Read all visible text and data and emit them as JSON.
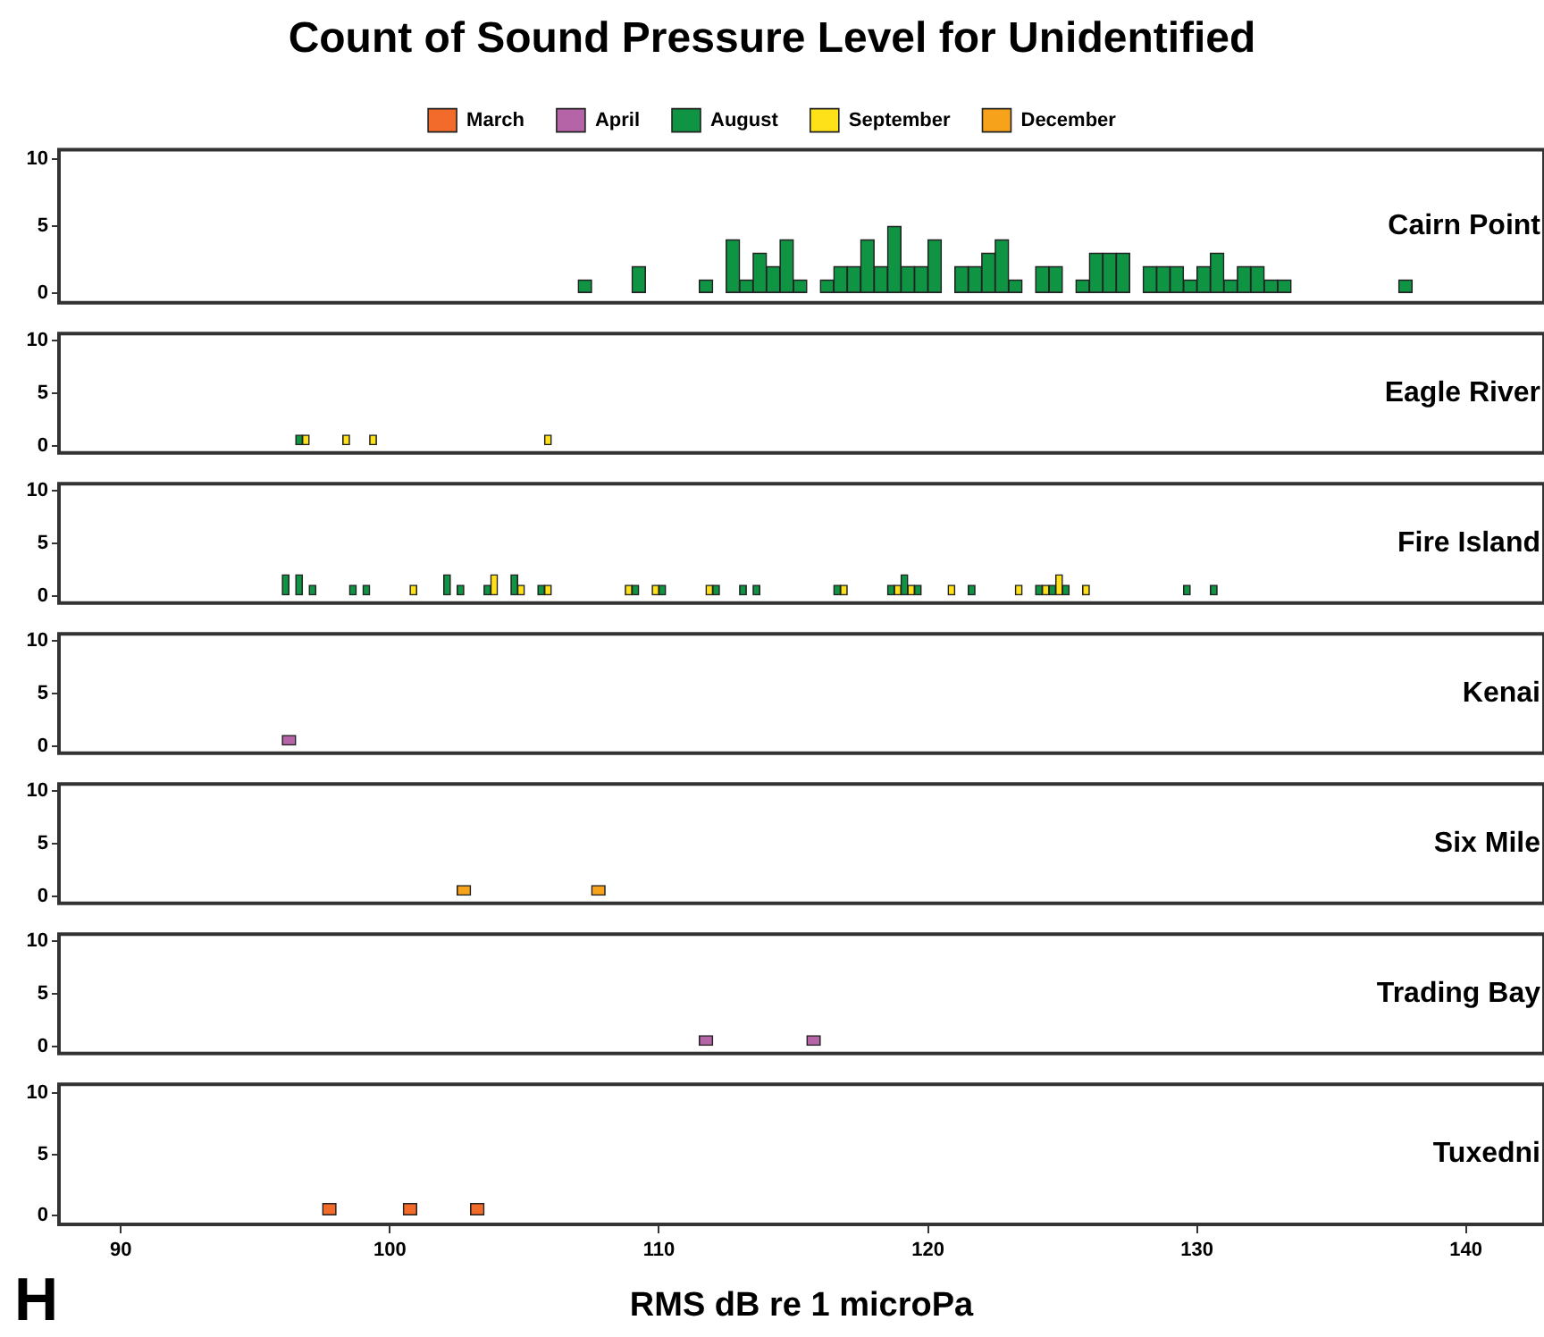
{
  "chart_data": [
    {
      "type": "bar",
      "title": "Count of Sound Pressure Level for Unidentified",
      "legend": "top",
      "tick_labels": "y",
      "xlim": [
        87.7,
        142.9
      ],
      "xticks": [
        90,
        100,
        110,
        120,
        130,
        140
      ],
      "ylim": [
        -0.7,
        10.7
      ],
      "yticks": [
        0,
        5,
        10
      ],
      "annotations": [
        "Cairn Point"
      ],
      "series": [
        {
          "name": "March",
          "color": "#f26b2a"
        },
        {
          "name": "April",
          "color": "#b565a7"
        },
        {
          "name": "August",
          "color": "#0f9444",
          "x": [
            107.25,
            109.25,
            111.75,
            112.75,
            113.25,
            113.75,
            114.25,
            114.75,
            115.25,
            116.25,
            116.75,
            117.25,
            117.75,
            118.25,
            118.75,
            119.25,
            119.75,
            120.25,
            121.25,
            121.75,
            122.25,
            122.75,
            123.25,
            124.25,
            124.75,
            125.75,
            126.25,
            126.75,
            127.25,
            128.25,
            128.75,
            129.25,
            129.75,
            130.25,
            130.75,
            131.25,
            131.75,
            132.25,
            132.75,
            133.25,
            137.75
          ],
          "values": [
            1,
            2,
            1,
            4,
            1,
            3,
            2,
            4,
            1,
            1,
            2,
            2,
            4,
            2,
            5,
            2,
            2,
            4,
            2,
            2,
            3,
            4,
            1,
            2,
            2,
            1,
            3,
            3,
            3,
            2,
            2,
            2,
            1,
            2,
            3,
            1,
            2,
            2,
            1,
            1,
            1
          ]
        },
        {
          "name": "September",
          "color": "#ffe11a"
        },
        {
          "name": "December",
          "color": "#f7a21b"
        }
      ]
    },
    {
      "type": "bar",
      "tick_labels": "y",
      "xlim": [
        87.7,
        142.9
      ],
      "xticks": [
        90,
        100,
        110,
        120,
        130,
        140
      ],
      "ylim": [
        -0.7,
        10.7
      ],
      "yticks": [
        0,
        5,
        10
      ],
      "annotations": [
        "Eagle River"
      ],
      "series": [
        {
          "color": "#0f9444",
          "x": [
            96.625
          ],
          "values": [
            1
          ]
        },
        {
          "color": "#ffe11a",
          "x": [
            96.875,
            98.375,
            99.375,
            105.875
          ],
          "values": [
            1,
            1,
            1,
            1
          ]
        }
      ]
    },
    {
      "type": "bar",
      "tick_labels": "y",
      "xlim": [
        87.7,
        142.9
      ],
      "xticks": [
        90,
        100,
        110,
        120,
        130,
        140
      ],
      "ylim": [
        -0.7,
        10.7
      ],
      "yticks": [
        0,
        5,
        10
      ],
      "annotations": [
        "Fire Island"
      ],
      "series": [
        {
          "color": "#0f9444",
          "x": [
            96.125,
            96.625,
            97.125,
            98.625,
            99.125,
            102.125,
            102.625,
            103.625,
            104.625,
            105.625,
            109.125,
            110.125,
            112.125,
            113.125,
            113.625,
            116.625,
            118.625,
            119.125,
            119.625,
            121.625,
            124.125,
            124.625,
            125.125,
            129.625,
            130.625
          ],
          "values": [
            2,
            2,
            1,
            1,
            1,
            2,
            1,
            1,
            2,
            1,
            1,
            1,
            1,
            1,
            1,
            1,
            1,
            2,
            1,
            1,
            1,
            1,
            1,
            1,
            1
          ]
        },
        {
          "color": "#ffe11a",
          "x": [
            100.875,
            103.875,
            104.875,
            105.875,
            108.875,
            109.875,
            111.875,
            116.875,
            118.875,
            119.375,
            120.875,
            123.375,
            124.375,
            124.875,
            125.875
          ],
          "values": [
            1,
            2,
            1,
            1,
            1,
            1,
            1,
            1,
            1,
            1,
            1,
            1,
            1,
            2,
            1
          ]
        }
      ]
    },
    {
      "type": "bar",
      "tick_labels": "y",
      "xlim": [
        87.7,
        142.9
      ],
      "xticks": [
        90,
        100,
        110,
        120,
        130,
        140
      ],
      "ylim": [
        -0.7,
        10.7
      ],
      "yticks": [
        0,
        5,
        10
      ],
      "annotations": [
        "Kenai"
      ],
      "series": [
        {
          "color": "#b565a7",
          "x": [
            96.25
          ],
          "values": [
            1
          ]
        }
      ]
    },
    {
      "type": "bar",
      "tick_labels": "y",
      "xlim": [
        87.7,
        142.9
      ],
      "xticks": [
        90,
        100,
        110,
        120,
        130,
        140
      ],
      "ylim": [
        -0.7,
        10.7
      ],
      "yticks": [
        0,
        5,
        10
      ],
      "annotations": [
        "Six Mile"
      ],
      "series": [
        {
          "color": "#f7a21b",
          "x": [
            102.75,
            107.75
          ],
          "values": [
            1,
            1
          ]
        }
      ]
    },
    {
      "type": "bar",
      "tick_labels": "y",
      "xlim": [
        87.7,
        142.9
      ],
      "xticks": [
        90,
        100,
        110,
        120,
        130,
        140
      ],
      "ylim": [
        -0.7,
        10.7
      ],
      "yticks": [
        0,
        5,
        10
      ],
      "annotations": [
        "Trading Bay"
      ],
      "series": [
        {
          "color": "#b565a7",
          "x": [
            111.75,
            115.75
          ],
          "values": [
            1,
            1
          ]
        }
      ]
    },
    {
      "type": "bar",
      "xlabel": "RMS dB re 1 microPa",
      "xlim": [
        87.7,
        142.9
      ],
      "xticks": [
        90,
        100,
        110,
        120,
        130,
        140
      ],
      "ylim": [
        -0.7,
        10.7
      ],
      "yticks": [
        0,
        5,
        10
      ],
      "annotations": [
        "Tuxedni",
        "H"
      ],
      "series": [
        {
          "color": "#f26b2a",
          "x": [
            97.75,
            100.75,
            103.25
          ],
          "values": [
            1,
            1,
            1
          ]
        }
      ]
    }
  ]
}
